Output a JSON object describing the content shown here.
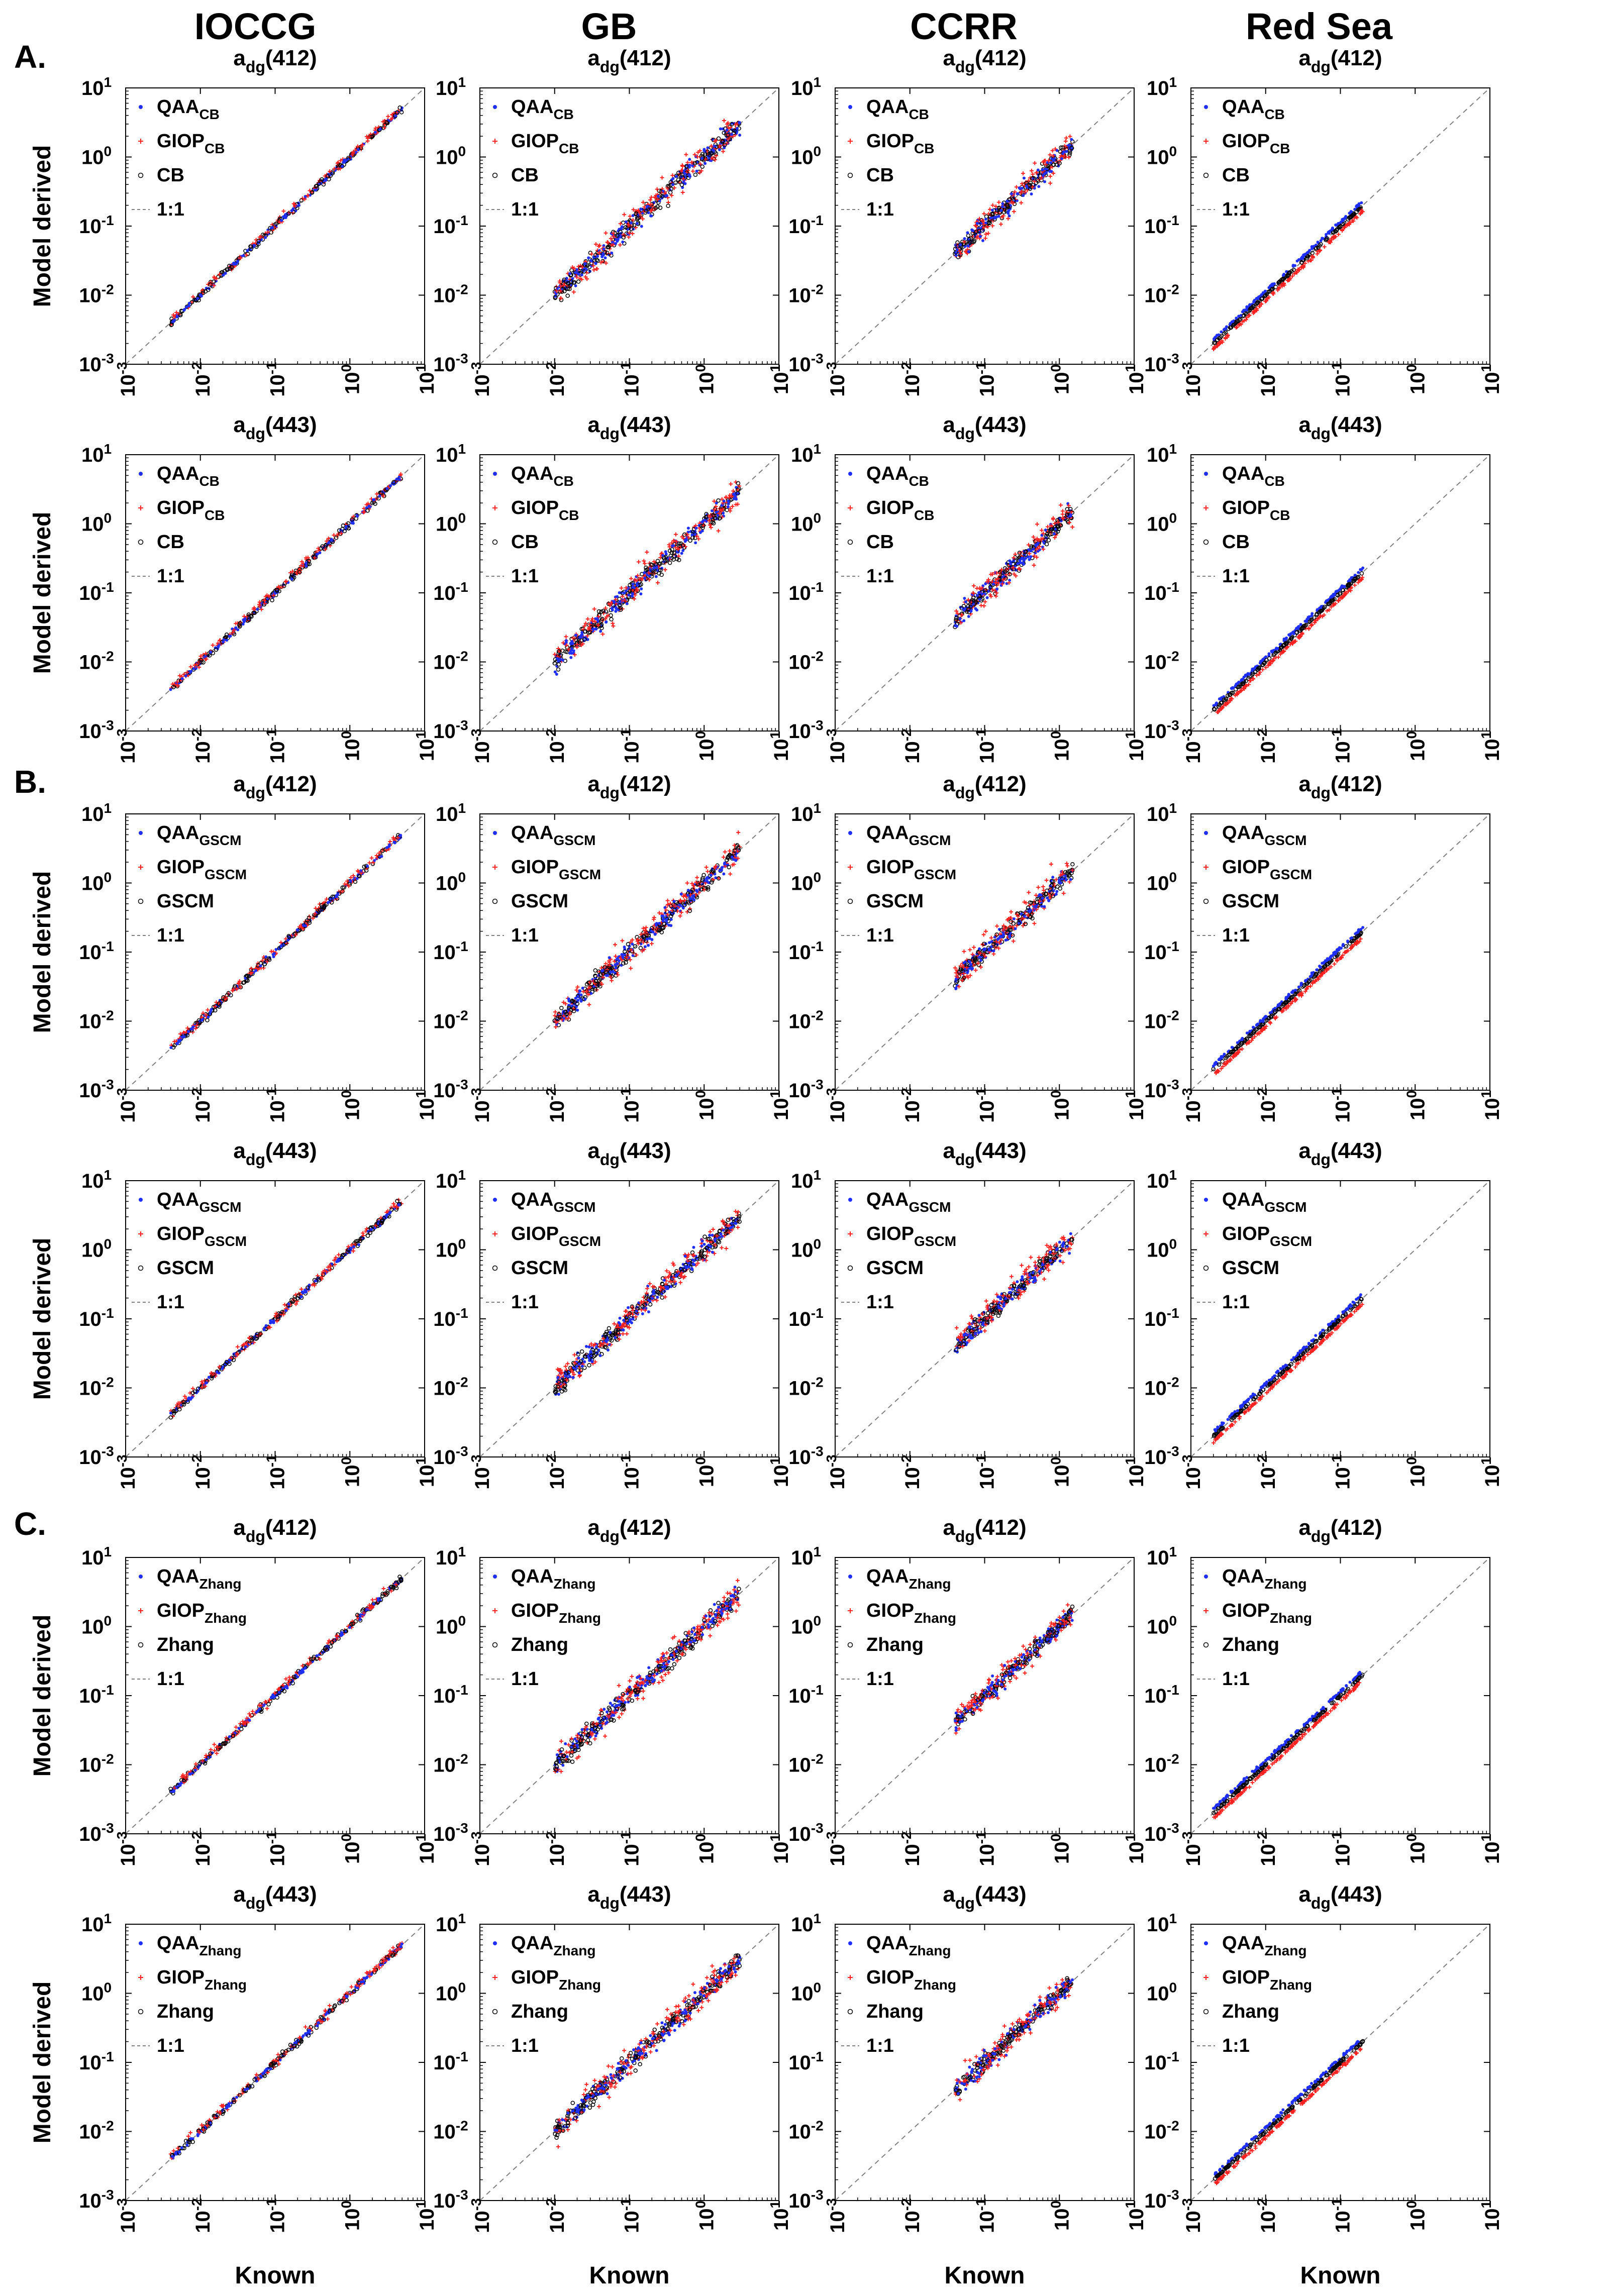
{
  "figure": {
    "column_titles": [
      "IOCCG",
      "GB",
      "CCRR",
      "Red Sea"
    ],
    "section_labels": [
      "A.",
      "B.",
      "C."
    ],
    "x_label": "Known",
    "y_label": "Model derived"
  },
  "chart_data": {
    "type": "scatter",
    "scale": "log-log",
    "xlim": [
      0.001,
      10
    ],
    "ylim": [
      0.001,
      10
    ],
    "tick_base": "10",
    "tick_exponents": [
      "-3",
      "-2",
      "-1",
      "0",
      "1"
    ],
    "reference_line": "1:1",
    "colors": {
      "qaa": "#1f2fff",
      "giop": "#ff2020",
      "model": "#000000",
      "line": "#7f7f7f"
    },
    "title_prefix": "a",
    "title_subscript": "dg",
    "wavelengths": [
      "(412)",
      "(443)"
    ],
    "sections": [
      {
        "label": "A.",
        "model": "CB",
        "legend": [
          {
            "base": "QAA",
            "sub": "CB"
          },
          {
            "base": "GIOP",
            "sub": "CB"
          },
          {
            "base": "CB",
            "sub": ""
          },
          {
            "base": "1:1",
            "sub": ""
          }
        ]
      },
      {
        "label": "B.",
        "model": "GSCM",
        "legend": [
          {
            "base": "QAA",
            "sub": "GSCM"
          },
          {
            "base": "GIOP",
            "sub": "GSCM"
          },
          {
            "base": "GSCM",
            "sub": ""
          },
          {
            "base": "1:1",
            "sub": ""
          }
        ]
      },
      {
        "label": "C.",
        "model": "Zhang",
        "legend": [
          {
            "base": "QAA",
            "sub": "Zhang"
          },
          {
            "base": "GIOP",
            "sub": "Zhang"
          },
          {
            "base": "Zhang",
            "sub": ""
          },
          {
            "base": "1:1",
            "sub": ""
          }
        ]
      }
    ],
    "datasets": [
      {
        "name": "IOCCG",
        "known_range": [
          0.004,
          5
        ],
        "spread": [
          0.05,
          0.1,
          0.07
        ]
      },
      {
        "name": "GB",
        "known_range": [
          0.01,
          3
        ],
        "spread": [
          0.2,
          0.3,
          0.2
        ]
      },
      {
        "name": "CCRR",
        "known_range": [
          0.04,
          1.5
        ],
        "spread": [
          0.2,
          0.3,
          0.16
        ]
      },
      {
        "name": "Red Sea",
        "known_range": [
          0.002,
          0.2
        ],
        "spread": [
          0.03,
          0.03,
          0.02
        ]
      }
    ]
  }
}
